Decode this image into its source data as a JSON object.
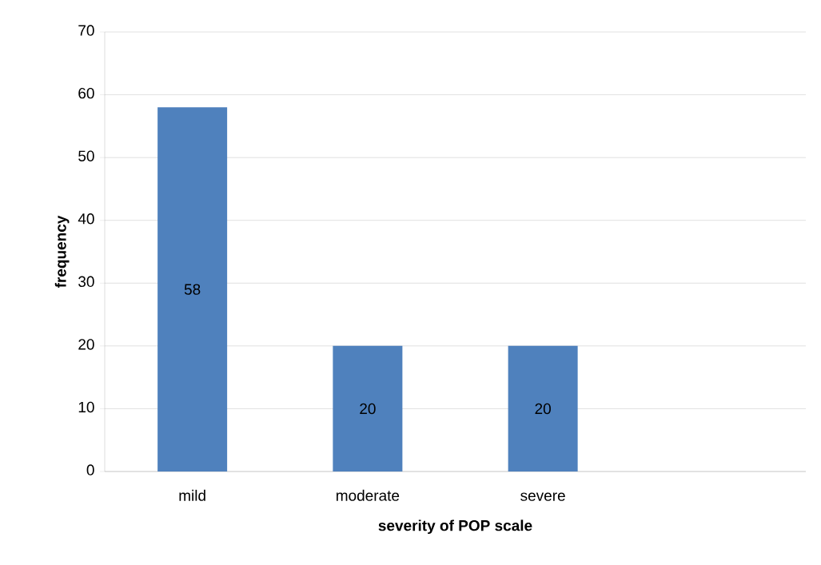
{
  "chart_data": {
    "type": "bar",
    "xlabel": "severity of POP scale",
    "ylabel": "frequency",
    "categories": [
      "mild",
      "moderate",
      "severe",
      null
    ],
    "values": [
      58,
      20,
      20,
      null
    ],
    "color": "#4f81bd",
    "ylim": [
      0,
      70
    ],
    "yticks": [
      0,
      10,
      20,
      30,
      40,
      50,
      60,
      70
    ],
    "grid": "y",
    "data_labels": true
  }
}
